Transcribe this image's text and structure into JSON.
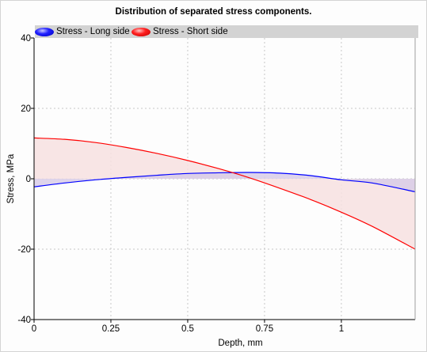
{
  "chart_data": {
    "type": "area",
    "title": "Distribution of separated stress components.",
    "xlabel": "Depth, mm",
    "ylabel": "Stress, MPa",
    "xlim": [
      0,
      1.24
    ],
    "ylim": [
      -40,
      40
    ],
    "x_ticks": [
      0,
      0.25,
      0.5,
      0.75,
      1
    ],
    "x_tick_labels": [
      "0",
      "0.25",
      "0.5",
      "0.75",
      "1"
    ],
    "y_ticks": [
      -40,
      -20,
      0,
      20,
      40
    ],
    "y_tick_labels": [
      "-40",
      "-20",
      "0",
      "20",
      "40"
    ],
    "grid": true,
    "legend_position": "top",
    "x": [
      0,
      0.1,
      0.2,
      0.3,
      0.4,
      0.5,
      0.6,
      0.7,
      0.8,
      0.9,
      1.0,
      1.1,
      1.24
    ],
    "series": [
      {
        "name": "Stress - Long side",
        "color": "#0000ff",
        "fill": "#d8cde8",
        "values": [
          -2.3,
          -1.2,
          -0.3,
          0.4,
          1.0,
          1.5,
          1.7,
          1.8,
          1.6,
          0.9,
          -0.3,
          -1.2,
          -3.7
        ]
      },
      {
        "name": "Stress - Short side",
        "color": "#ff0000",
        "fill": "#f7e1e1",
        "values": [
          11.6,
          11.2,
          10.3,
          8.9,
          7.2,
          5.2,
          2.9,
          0.3,
          -2.7,
          -5.9,
          -9.5,
          -13.5,
          -20.0
        ]
      }
    ]
  }
}
